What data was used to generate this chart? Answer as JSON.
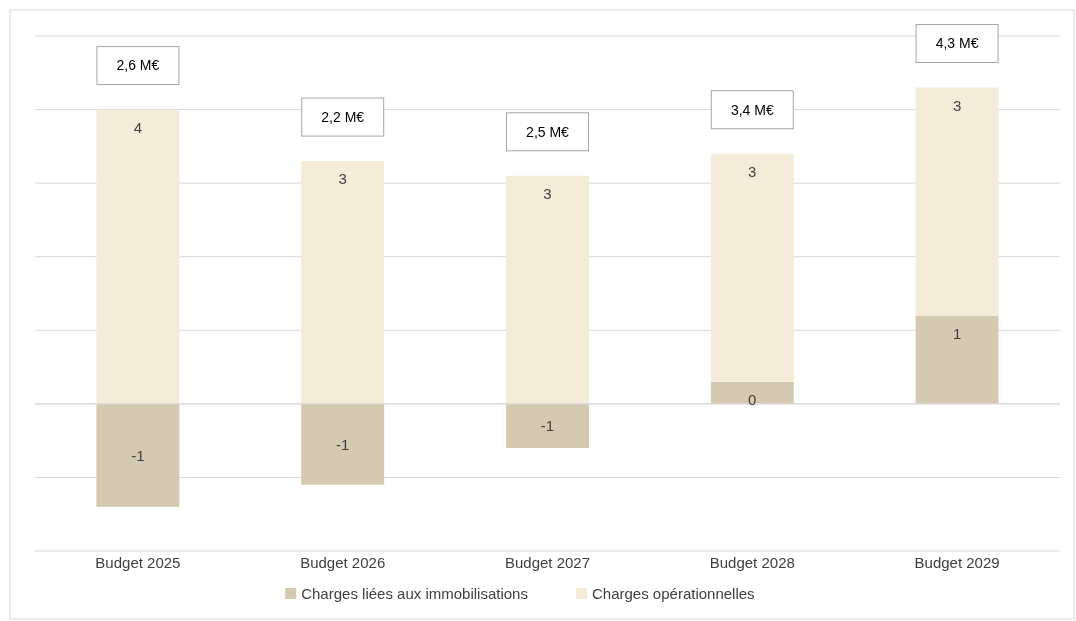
{
  "chart_data": {
    "type": "bar",
    "stacked": true,
    "categories": [
      "Budget 2025",
      "Budget 2026",
      "Budget 2027",
      "Budget 2028",
      "Budget 2029"
    ],
    "series": [
      {
        "name": "Charges liées aux immobilisations",
        "color": "#d5c9b1",
        "values": [
          -1.4,
          -1.1,
          -0.6,
          0.3,
          1.2
        ],
        "value_labels": [
          "-1",
          "-1",
          "-1",
          "0",
          "1"
        ]
      },
      {
        "name": "Charges opérationnelles",
        "color": "#f5ebd9",
        "values": [
          4.0,
          3.3,
          3.1,
          3.1,
          3.1
        ],
        "value_labels": [
          "4",
          "3",
          "3",
          "3",
          "3"
        ]
      }
    ],
    "totals": [
      "2,6 M€",
      "2,2 M€",
      "2,5 M€",
      "3,4 M€",
      "4,3 M€"
    ],
    "ylim": [
      -2,
      5
    ],
    "yticks": [
      {
        "value": -2,
        "label": null
      },
      {
        "value": -1,
        "label": null
      },
      {
        "value": 0,
        "label": null
      },
      {
        "value": 1,
        "label": null
      },
      {
        "value": 2,
        "label": null
      },
      {
        "value": 3,
        "label": null
      },
      {
        "value": 4,
        "label": null
      },
      {
        "value": 5,
        "label": null
      }
    ],
    "tick_labels": "x",
    "grid": "y",
    "legend": "bottom"
  }
}
